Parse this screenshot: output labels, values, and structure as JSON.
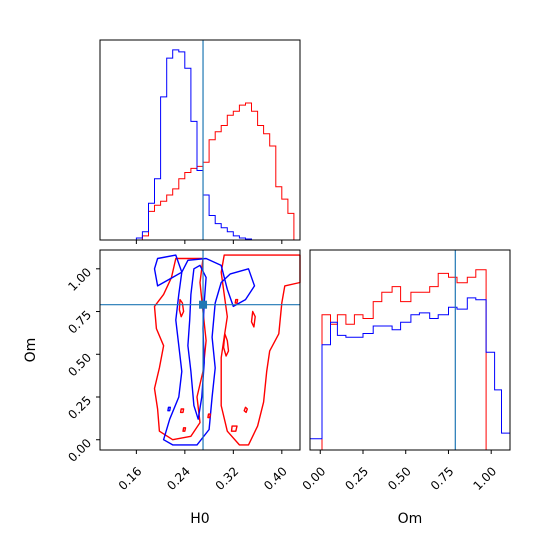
{
  "chart_data": {
    "type": "corner",
    "truth": {
      "H0": 0.27,
      "Om": 0.79
    },
    "colors": {
      "series_a": "#ff0000",
      "series_b": "#0000ff",
      "truth": "#1f77b4"
    },
    "grid": false,
    "axes": {
      "H0": {
        "label": "H0",
        "range": [
          0.1,
          0.43
        ],
        "ticks": [
          0.16,
          0.24,
          0.32,
          0.4
        ],
        "tick_labels": [
          "0.16",
          "0.24",
          "0.32",
          "0.40"
        ]
      },
      "Om": {
        "label": "Om",
        "range": [
          -0.06,
          1.11
        ],
        "ticks": [
          0.0,
          0.25,
          0.5,
          0.75,
          1.0
        ],
        "tick_labels": [
          "0.00",
          "0.25",
          "0.50",
          "0.75",
          "1.00"
        ]
      }
    },
    "hist_H0": {
      "bins": [
        0.1,
        0.11,
        0.12,
        0.13,
        0.14,
        0.15,
        0.16,
        0.17,
        0.18,
        0.19,
        0.2,
        0.21,
        0.22,
        0.23,
        0.24,
        0.25,
        0.26,
        0.27,
        0.28,
        0.29,
        0.3,
        0.31,
        0.32,
        0.33,
        0.34,
        0.35,
        0.36,
        0.37,
        0.38,
        0.39,
        0.4,
        0.41,
        0.42,
        0.43
      ],
      "series": [
        {
          "color_key": "series_a",
          "values": [
            0,
            0,
            0,
            0,
            0,
            0,
            0,
            0.02,
            0.14,
            0.17,
            0.19,
            0.22,
            0.25,
            0.3,
            0.33,
            0.35,
            0.36,
            0.38,
            0.49,
            0.53,
            0.56,
            0.61,
            0.63,
            0.66,
            0.67,
            0.63,
            0.56,
            0.52,
            0.46,
            0.26,
            0.2,
            0.13,
            0
          ]
        },
        {
          "color_key": "series_b",
          "values": [
            0,
            0,
            0,
            0,
            0,
            0,
            0.01,
            0.04,
            0.18,
            0.3,
            0.7,
            0.89,
            0.93,
            0.92,
            0.84,
            0.58,
            0.34,
            0.22,
            0.12,
            0.08,
            0.06,
            0.04,
            0.02,
            0.01,
            0.005,
            0,
            0,
            0,
            0,
            0,
            0,
            0,
            0
          ]
        }
      ]
    },
    "hist_Om": {
      "bins": [
        -0.06,
        -0.01,
        0.01,
        0.06,
        0.1,
        0.15,
        0.2,
        0.25,
        0.31,
        0.36,
        0.42,
        0.47,
        0.53,
        0.58,
        0.64,
        0.69,
        0.75,
        0.8,
        0.86,
        0.91,
        0.97,
        1.02,
        1.06,
        1.11
      ],
      "series": [
        {
          "color_key": "series_a",
          "values": [
            0,
            0,
            0.72,
            0.67,
            0.72,
            0.67,
            0.72,
            0.7,
            0.79,
            0.84,
            0.87,
            0.79,
            0.84,
            0.84,
            0.87,
            0.94,
            0.92,
            0.89,
            0.92,
            0.96,
            0,
            0,
            0
          ]
        },
        {
          "color_key": "series_b",
          "values": [
            0.06,
            0.06,
            0.56,
            0.68,
            0.61,
            0.6,
            0.6,
            0.62,
            0.66,
            0.66,
            0.64,
            0.68,
            0.72,
            0.73,
            0.7,
            0.72,
            0.76,
            0.75,
            0.81,
            0.8,
            0.52,
            0.32,
            0.09
          ]
        }
      ]
    },
    "contours": [
      {
        "color_key": "series_a",
        "shape": "outer",
        "points": [
          [
            0.225,
            1.06
          ],
          [
            0.218,
            0.95
          ],
          [
            0.205,
            0.85
          ],
          [
            0.19,
            0.78
          ],
          [
            0.193,
            0.65
          ],
          [
            0.205,
            0.55
          ],
          [
            0.198,
            0.42
          ],
          [
            0.19,
            0.3
          ],
          [
            0.195,
            0.18
          ],
          [
            0.198,
            0.05
          ],
          [
            0.22,
            0.0
          ],
          [
            0.25,
            0.02
          ],
          [
            0.265,
            0.1
          ],
          [
            0.26,
            0.25
          ],
          [
            0.27,
            0.4
          ],
          [
            0.275,
            0.58
          ],
          [
            0.27,
            0.75
          ],
          [
            0.265,
            0.92
          ],
          [
            0.27,
            1.06
          ]
        ]
      },
      {
        "color_key": "series_a",
        "shape": "outer",
        "points": [
          [
            0.305,
            1.08
          ],
          [
            0.36,
            1.08
          ],
          [
            0.43,
            1.08
          ],
          [
            0.43,
            0.92
          ],
          [
            0.405,
            0.9
          ],
          [
            0.4,
            0.8
          ],
          [
            0.395,
            0.62
          ],
          [
            0.38,
            0.52
          ],
          [
            0.375,
            0.4
          ],
          [
            0.37,
            0.22
          ],
          [
            0.36,
            0.08
          ],
          [
            0.345,
            -0.03
          ],
          [
            0.33,
            -0.03
          ],
          [
            0.31,
            0.05
          ],
          [
            0.3,
            0.2
          ],
          [
            0.3,
            0.35
          ],
          [
            0.3,
            0.48
          ],
          [
            0.305,
            0.6
          ],
          [
            0.31,
            0.72
          ],
          [
            0.305,
            0.85
          ],
          [
            0.3,
            0.98
          ]
        ]
      },
      {
        "color_key": "series_b",
        "shape": "outer",
        "points": [
          [
            0.195,
            1.06
          ],
          [
            0.225,
            1.08
          ],
          [
            0.235,
            0.98
          ],
          [
            0.23,
            0.85
          ],
          [
            0.225,
            0.7
          ],
          [
            0.23,
            0.55
          ],
          [
            0.235,
            0.4
          ],
          [
            0.23,
            0.25
          ],
          [
            0.215,
            0.12
          ],
          [
            0.205,
            0.0
          ],
          [
            0.22,
            -0.03
          ],
          [
            0.26,
            -0.03
          ],
          [
            0.28,
            0.06
          ],
          [
            0.285,
            0.25
          ],
          [
            0.29,
            0.42
          ],
          [
            0.285,
            0.6
          ],
          [
            0.29,
            0.8
          ],
          [
            0.3,
            0.92
          ],
          [
            0.315,
            0.97
          ],
          [
            0.345,
            1.0
          ],
          [
            0.355,
            0.9
          ],
          [
            0.34,
            0.82
          ],
          [
            0.32,
            0.78
          ],
          [
            0.31,
            0.88
          ],
          [
            0.3,
            1.02
          ],
          [
            0.275,
            1.06
          ],
          [
            0.245,
            1.05
          ],
          [
            0.235,
            0.98
          ],
          [
            0.22,
            0.95
          ],
          [
            0.195,
            0.9
          ],
          [
            0.19,
            1.0
          ]
        ]
      },
      {
        "color_key": "series_b",
        "shape": "inner",
        "points": [
          [
            0.255,
            1.0
          ],
          [
            0.25,
            0.85
          ],
          [
            0.248,
            0.7
          ],
          [
            0.245,
            0.55
          ],
          [
            0.25,
            0.4
          ],
          [
            0.255,
            0.2
          ],
          [
            0.262,
            0.12
          ],
          [
            0.268,
            0.25
          ],
          [
            0.272,
            0.45
          ],
          [
            0.27,
            0.65
          ],
          [
            0.272,
            0.8
          ],
          [
            0.275,
            0.95
          ],
          [
            0.265,
            1.02
          ]
        ]
      },
      {
        "color_key": "series_a",
        "shape": "blob",
        "points": [
          [
            0.232,
            0.82
          ],
          [
            0.236,
            0.8
          ],
          [
            0.238,
            0.75
          ],
          [
            0.234,
            0.72
          ],
          [
            0.231,
            0.76
          ]
        ]
      },
      {
        "color_key": "series_a",
        "shape": "blob",
        "points": [
          [
            0.306,
            0.62
          ],
          [
            0.31,
            0.58
          ],
          [
            0.312,
            0.52
          ],
          [
            0.308,
            0.49
          ],
          [
            0.304,
            0.54
          ]
        ]
      },
      {
        "color_key": "series_a",
        "shape": "blob",
        "points": [
          [
            0.352,
            0.75
          ],
          [
            0.356,
            0.72
          ],
          [
            0.354,
            0.66
          ],
          [
            0.35,
            0.69
          ]
        ]
      },
      {
        "color_key": "series_a",
        "shape": "blob",
        "points": [
          [
            0.318,
            0.08
          ],
          [
            0.326,
            0.08
          ],
          [
            0.324,
            0.05
          ],
          [
            0.317,
            0.05
          ]
        ]
      },
      {
        "color_key": "series_a",
        "shape": "blob",
        "points": [
          [
            0.34,
            0.19
          ],
          [
            0.343,
            0.18
          ],
          [
            0.341,
            0.16
          ],
          [
            0.338,
            0.17
          ]
        ]
      },
      {
        "color_key": "series_a",
        "shape": "blob",
        "points": [
          [
            0.234,
            0.18
          ],
          [
            0.238,
            0.18
          ],
          [
            0.237,
            0.16
          ],
          [
            0.233,
            0.16
          ]
        ]
      },
      {
        "color_key": "series_a",
        "shape": "blob",
        "points": [
          [
            0.279,
            0.15
          ],
          [
            0.282,
            0.15
          ],
          [
            0.281,
            0.13
          ],
          [
            0.278,
            0.13
          ]
        ]
      },
      {
        "color_key": "series_a",
        "shape": "blob",
        "points": [
          [
            0.238,
            0.07
          ],
          [
            0.241,
            0.07
          ],
          [
            0.24,
            0.05
          ],
          [
            0.237,
            0.05
          ]
        ]
      },
      {
        "color_key": "series_a",
        "shape": "blob",
        "points": [
          [
            0.324,
            0.82
          ],
          [
            0.327,
            0.82
          ],
          [
            0.326,
            0.8
          ],
          [
            0.323,
            0.8
          ]
        ]
      },
      {
        "color_key": "series_b",
        "shape": "blob",
        "points": [
          [
            0.213,
            0.19
          ],
          [
            0.216,
            0.19
          ],
          [
            0.215,
            0.17
          ],
          [
            0.212,
            0.17
          ]
        ]
      }
    ]
  }
}
